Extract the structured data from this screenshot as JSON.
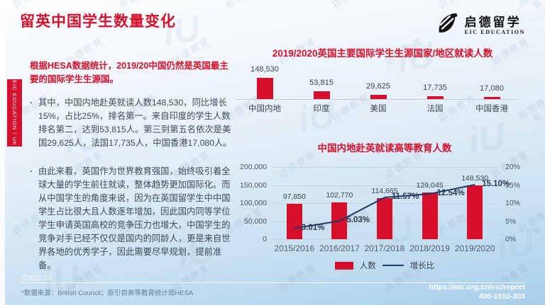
{
  "page": {
    "title": "留英中国学生数量变化",
    "logo": {
      "cn": "启德留学",
      "en": "EIC EDUCATION"
    },
    "side_tab": "EIC EDUCATION / UK",
    "watermark": {
      "cn": "启德教育",
      "en": "EIC EDUCATION",
      "mark": "iU"
    }
  },
  "left_panel": {
    "highlight": "根据HESA数据统计，2019/20中国仍然是英国最主要的国际学生生源国。",
    "bullet_marker": "·",
    "bullets": [
      "其中，中国内地赴英就读人数148,530，同比增长15%，占比25%，排名第一。来自印度的学生人数排名第二，达到53,815人。第三到第五名依次是美国29,625人，法国17,735人，中国香港17,080人。",
      "由此来看，英国作为世界教育强国，始终吸引着全球大量的学生前往就读，整体趋势更加国际化。而从中国学生的角度来说，因为在英国留学生中中国学生占比很大且人数逐年增加，因此国内同等学位学生申请英国高校的竞争压力也增大，中国学生的竞争对手已经不仅仅是国内的同龄人，更是来自世界各地的优秀学子，因此需要尽早规划，提前准备。"
    ]
  },
  "footer": {
    "copyright": "©2021.09",
    "source": "*数据来源：British Council；原引自高等教育统计局HESA",
    "url": "https://eic.org.cn/eic/report",
    "phone": "400-1010-303"
  },
  "colors": {
    "accent": "#D50F2C",
    "line": "#1F3966",
    "text_dark": "#3B4554"
  },
  "chart_data": [
    {
      "type": "bar",
      "title": "2019/2020英国主要国际学生生源国家/地区就读人数",
      "categories": [
        "中国内地",
        "印度",
        "美国",
        "法国",
        "中国香港"
      ],
      "values": [
        148530,
        53815,
        29625,
        17735,
        17080
      ],
      "value_labels": [
        "148,530",
        "53,815",
        "29,625",
        "17,735",
        "17,080"
      ],
      "xlabel": "",
      "ylabel": "",
      "ylim": [
        0,
        148530
      ],
      "grid": false,
      "legend_position": "none"
    },
    {
      "type": "bar",
      "title": "中国内地赴英就读高等教育人数",
      "categories": [
        "2015/2016",
        "2016/2017",
        "2017/2018",
        "2018/2019",
        "2019/2020"
      ],
      "series": [
        {
          "name": "人数",
          "type": "bar",
          "axis": "left",
          "values": [
            97850,
            102770,
            114665,
            129045,
            148530
          ],
          "labels": [
            "97,850",
            "102,770",
            "114,665",
            "129,045",
            "148,530"
          ]
        },
        {
          "name": "增长比",
          "type": "line",
          "axis": "right",
          "values": [
            3.01,
            5.03,
            11.57,
            12.54,
            15.1
          ],
          "labels": [
            "3.01%",
            "5.03%",
            "11.57%",
            "12.54%",
            "15.10%"
          ]
        }
      ],
      "left_axis": {
        "ticks": [
          "200,000",
          "150,000",
          "100,000",
          "50,000",
          "0"
        ],
        "max": 200000,
        "min": 0
      },
      "right_axis": {
        "ticks": [
          "20%",
          "15%",
          "10%",
          "5%",
          "0%"
        ],
        "max": 20,
        "min": 0
      },
      "grid": true,
      "legend_position": "bottom"
    }
  ]
}
